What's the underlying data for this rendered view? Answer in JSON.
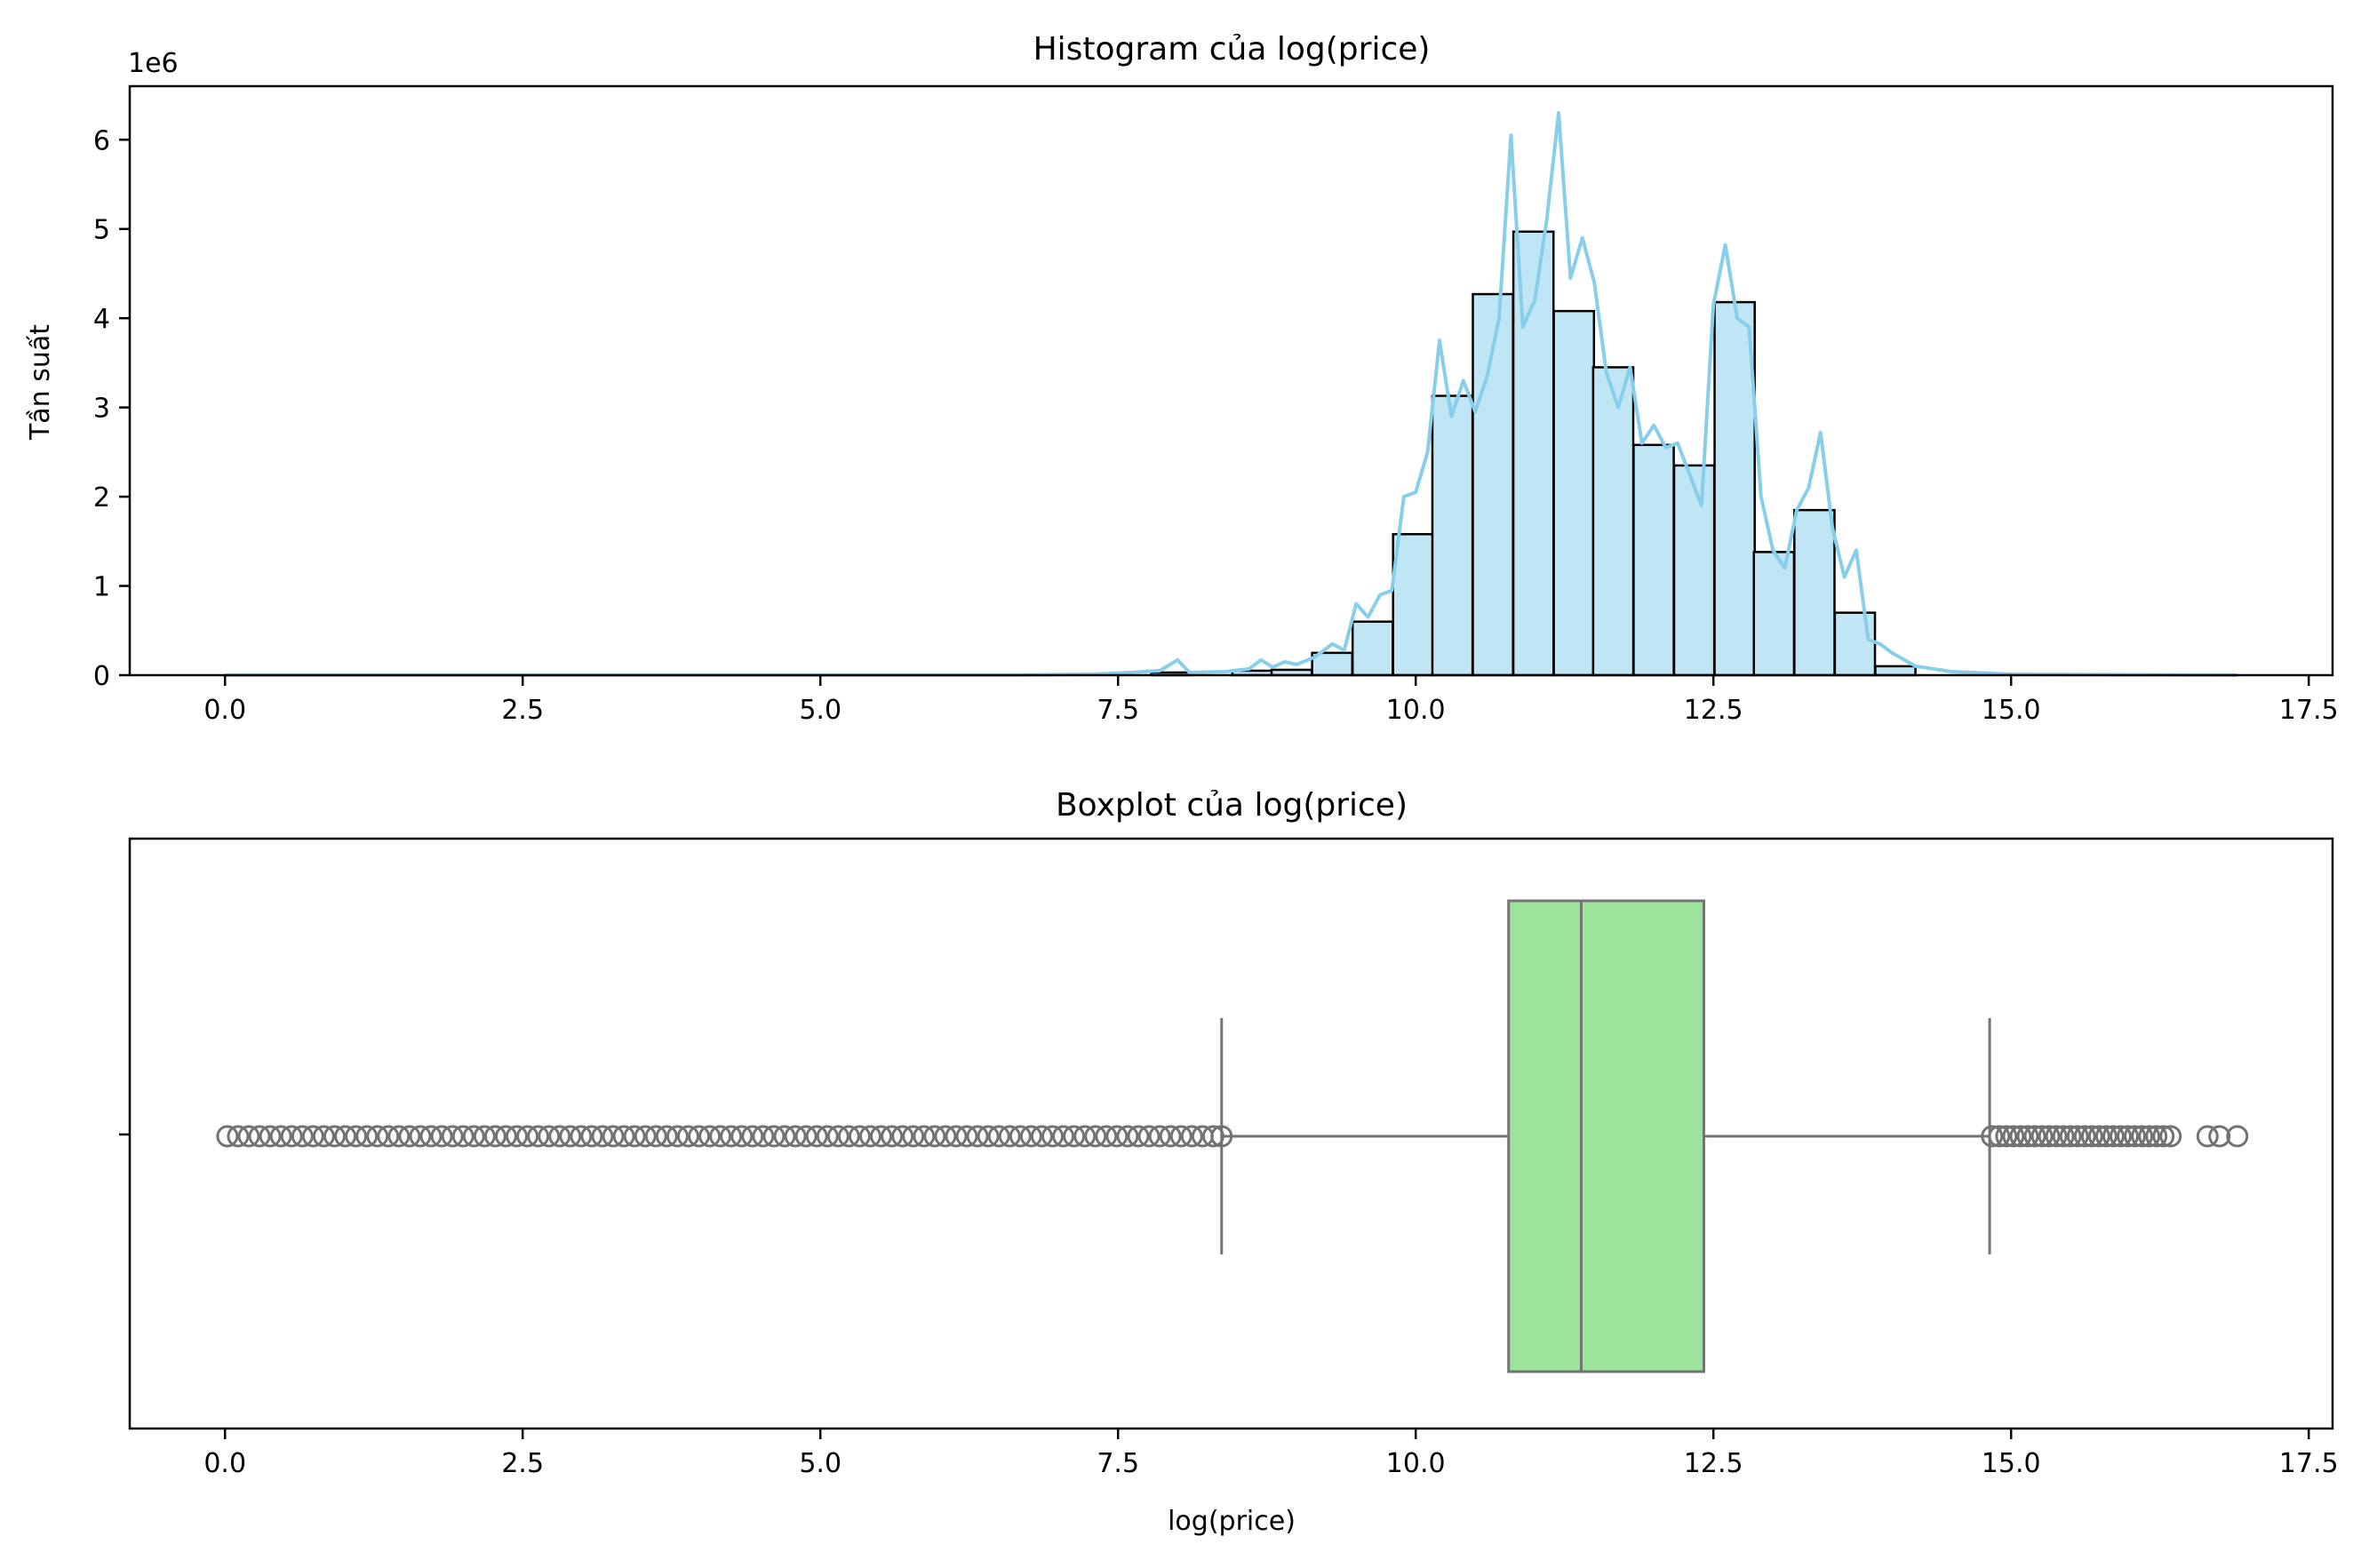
{
  "chart_data": [
    {
      "type": "bar",
      "title": "Histogram của log(price)",
      "xlabel": "",
      "ylabel": "Tần suất",
      "y_offset_label": "1e6",
      "xlim": [
        -0.8,
        17.7
      ],
      "ylim": [
        0,
        6.6
      ],
      "x_ticks": [
        0.0,
        2.5,
        5.0,
        7.5,
        10.0,
        12.5,
        15.0,
        17.5
      ],
      "x_tick_labels": [
        "0.0",
        "2.5",
        "5.0",
        "7.5",
        "10.0",
        "12.5",
        "15.0",
        "17.5"
      ],
      "y_ticks": [
        0,
        1,
        2,
        3,
        4,
        5,
        6
      ],
      "y_tick_labels": [
        "0",
        "1",
        "2",
        "3",
        "4",
        "5",
        "6"
      ],
      "bin_width": 0.337,
      "bins": [
        {
          "x0": 7.78,
          "value": 0.03
        },
        {
          "x0": 8.12,
          "value": 0.0
        },
        {
          "x0": 8.46,
          "value": 0.05
        },
        {
          "x0": 8.79,
          "value": 0.06
        },
        {
          "x0": 9.13,
          "value": 0.25
        },
        {
          "x0": 9.47,
          "value": 0.6
        },
        {
          "x0": 9.81,
          "value": 1.58
        },
        {
          "x0": 10.14,
          "value": 3.13
        },
        {
          "x0": 10.48,
          "value": 4.27
        },
        {
          "x0": 10.82,
          "value": 4.97
        },
        {
          "x0": 11.16,
          "value": 4.08
        },
        {
          "x0": 11.49,
          "value": 3.45
        },
        {
          "x0": 11.83,
          "value": 2.58
        },
        {
          "x0": 12.17,
          "value": 2.35
        },
        {
          "x0": 12.51,
          "value": 4.18
        },
        {
          "x0": 12.84,
          "value": 1.38
        },
        {
          "x0": 13.18,
          "value": 1.85
        },
        {
          "x0": 13.52,
          "value": 0.7
        },
        {
          "x0": 13.86,
          "value": 0.1
        }
      ],
      "kde_color": "#87ceeb",
      "bar_fill": "#c0e6f5",
      "kde": {
        "x": [
          0.0,
          6.5,
          7.3,
          7.6,
          7.85,
          8.0,
          8.1,
          8.4,
          8.6,
          8.7,
          8.8,
          8.9,
          9.0,
          9.15,
          9.3,
          9.4,
          9.5,
          9.6,
          9.7,
          9.8,
          9.9,
          10.0,
          10.1,
          10.2,
          10.3,
          10.4,
          10.5,
          10.6,
          10.7,
          10.8,
          10.9,
          11.0,
          11.1,
          11.2,
          11.3,
          11.4,
          11.5,
          11.6,
          11.7,
          11.8,
          11.9,
          12.0,
          12.1,
          12.2,
          12.3,
          12.4,
          12.5,
          12.6,
          12.7,
          12.8,
          12.9,
          13.0,
          13.1,
          13.2,
          13.3,
          13.4,
          13.5,
          13.6,
          13.7,
          13.8,
          13.9,
          14.0,
          14.2,
          14.5,
          15.0,
          16.9
        ],
        "y": [
          0.0,
          0.0,
          0.01,
          0.03,
          0.05,
          0.17,
          0.03,
          0.04,
          0.07,
          0.17,
          0.09,
          0.15,
          0.12,
          0.2,
          0.35,
          0.28,
          0.8,
          0.65,
          0.9,
          0.95,
          2.0,
          2.05,
          2.5,
          3.75,
          2.9,
          3.3,
          2.95,
          3.35,
          4.0,
          6.05,
          3.9,
          4.2,
          5.1,
          6.3,
          4.45,
          4.9,
          4.4,
          3.4,
          3.0,
          3.45,
          2.6,
          2.8,
          2.55,
          2.6,
          2.25,
          1.9,
          4.15,
          4.82,
          4.0,
          3.9,
          2.0,
          1.4,
          1.2,
          1.85,
          2.1,
          2.72,
          1.65,
          1.1,
          1.4,
          0.4,
          0.35,
          0.25,
          0.1,
          0.04,
          0.01,
          0.0
        ]
      }
    },
    {
      "type": "box",
      "title": "Boxplot của log(price)",
      "xlabel": "log(price)",
      "ylabel": "",
      "xlim": [
        -0.8,
        17.7
      ],
      "x_ticks": [
        0.0,
        2.5,
        5.0,
        7.5,
        10.0,
        12.5,
        15.0,
        17.5
      ],
      "x_tick_labels": [
        "0.0",
        "2.5",
        "5.0",
        "7.5",
        "10.0",
        "12.5",
        "15.0",
        "17.5"
      ],
      "box_color": "#9ee39c",
      "line_color": "#737373",
      "whisker_low": 8.37,
      "q1": 10.78,
      "median": 11.39,
      "q3": 12.42,
      "whisker_high": 14.82,
      "outliers_low_range": [
        0.0,
        8.37
      ],
      "outliers_high_range": [
        14.82,
        16.35
      ],
      "outliers_high_extra": [
        16.65,
        16.75,
        16.9
      ]
    }
  ]
}
